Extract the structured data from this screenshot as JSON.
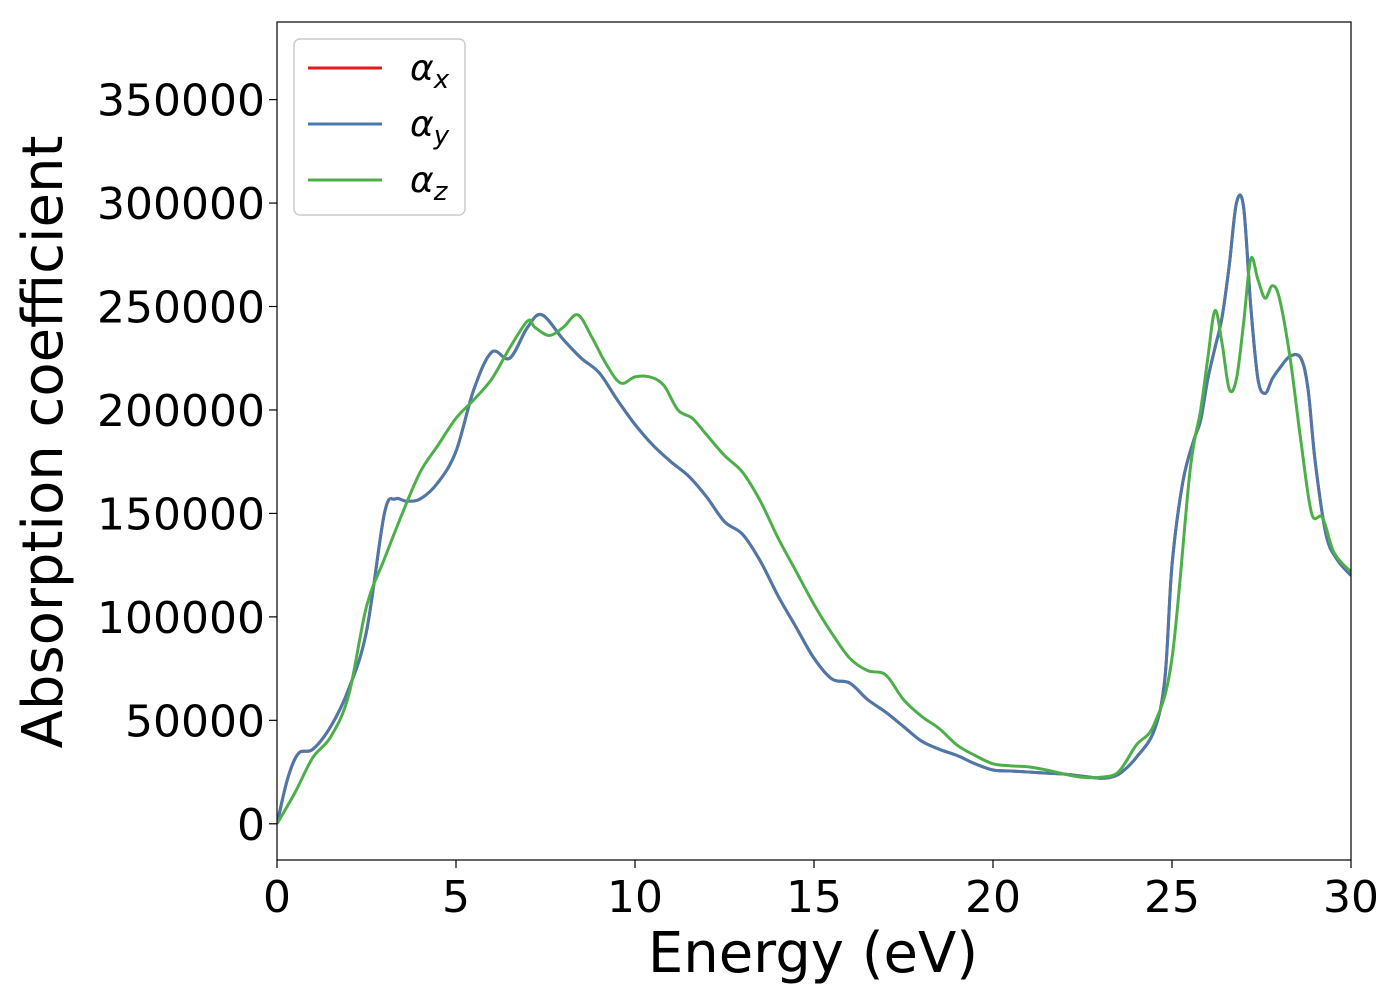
{
  "chart_data": {
    "type": "line",
    "xlabel": "Energy (eV)",
    "ylabel": "Absorption coefficient",
    "xlim": [
      0,
      30
    ],
    "ylim": [
      -17500,
      387500
    ],
    "xticks": [
      0,
      5,
      10,
      15,
      20,
      25,
      30
    ],
    "yticks": [
      0,
      50000,
      100000,
      150000,
      200000,
      250000,
      300000,
      350000
    ],
    "grid": false,
    "legend_position": "top-left",
    "series": [
      {
        "name": "αx",
        "legend_base": "α",
        "legend_sub": "x",
        "color": "#e41a1c",
        "x": [
          0,
          0.3,
          0.6,
          1.0,
          1.5,
          2.0,
          2.5,
          3.0,
          3.3,
          3.6,
          4.0,
          4.5,
          5.0,
          5.5,
          6.0,
          6.5,
          7.0,
          7.4,
          8.0,
          8.5,
          9.0,
          9.5,
          10.0,
          10.5,
          11.0,
          11.5,
          12.0,
          12.5,
          13.0,
          13.5,
          14.0,
          14.5,
          15.0,
          15.5,
          16.0,
          16.5,
          17.0,
          17.5,
          18.0,
          18.5,
          19.0,
          19.5,
          20.0,
          20.5,
          21.0,
          21.5,
          22.0,
          22.5,
          23.0,
          23.3,
          23.6,
          24.0,
          24.5,
          24.8,
          25.0,
          25.3,
          25.6,
          25.8,
          26.0,
          26.2,
          26.4,
          26.6,
          26.8,
          27.0,
          27.2,
          27.4,
          27.6,
          27.8,
          28.0,
          28.3,
          28.6,
          28.8,
          29.0,
          29.3,
          29.6,
          30.0
        ],
        "y": [
          0,
          22000,
          34000,
          36000,
          47000,
          65000,
          93000,
          150000,
          157000,
          156000,
          157000,
          165000,
          180000,
          210000,
          228000,
          225000,
          240000,
          246000,
          234000,
          225000,
          218000,
          205000,
          193000,
          183000,
          175000,
          168000,
          158000,
          146000,
          140000,
          127000,
          110000,
          95000,
          80000,
          70000,
          68000,
          60000,
          54000,
          47000,
          40000,
          36000,
          33000,
          29000,
          26000,
          25500,
          25000,
          24500,
          24000,
          23000,
          22000,
          22500,
          25000,
          32000,
          45000,
          70000,
          125000,
          165000,
          185000,
          195000,
          215000,
          230000,
          245000,
          270000,
          300000,
          298000,
          250000,
          215000,
          208000,
          215000,
          220000,
          226000,
          225000,
          210000,
          175000,
          140000,
          128000,
          120000
        ]
      },
      {
        "name": "αy",
        "legend_base": "α",
        "legend_sub": "y",
        "color": "#4a79aa",
        "x": [
          0,
          0.3,
          0.6,
          1.0,
          1.5,
          2.0,
          2.5,
          3.0,
          3.3,
          3.6,
          4.0,
          4.5,
          5.0,
          5.5,
          6.0,
          6.5,
          7.0,
          7.4,
          8.0,
          8.5,
          9.0,
          9.5,
          10.0,
          10.5,
          11.0,
          11.5,
          12.0,
          12.5,
          13.0,
          13.5,
          14.0,
          14.5,
          15.0,
          15.5,
          16.0,
          16.5,
          17.0,
          17.5,
          18.0,
          18.5,
          19.0,
          19.5,
          20.0,
          20.5,
          21.0,
          21.5,
          22.0,
          22.5,
          23.0,
          23.3,
          23.6,
          24.0,
          24.5,
          24.8,
          25.0,
          25.3,
          25.6,
          25.8,
          26.0,
          26.2,
          26.4,
          26.6,
          26.8,
          27.0,
          27.2,
          27.4,
          27.6,
          27.8,
          28.0,
          28.3,
          28.6,
          28.8,
          29.0,
          29.3,
          29.6,
          30.0
        ],
        "y": [
          0,
          22000,
          34000,
          36000,
          47000,
          65000,
          93000,
          150000,
          157000,
          156000,
          157000,
          165000,
          180000,
          210000,
          228000,
          225000,
          240000,
          246000,
          234000,
          225000,
          218000,
          205000,
          193000,
          183000,
          175000,
          168000,
          158000,
          146000,
          140000,
          127000,
          110000,
          95000,
          80000,
          70000,
          68000,
          60000,
          54000,
          47000,
          40000,
          36000,
          33000,
          29000,
          26000,
          25500,
          25000,
          24500,
          24000,
          23000,
          22000,
          22500,
          25000,
          32000,
          45000,
          70000,
          125000,
          165000,
          185000,
          195000,
          215000,
          230000,
          245000,
          270000,
          300000,
          298000,
          250000,
          215000,
          208000,
          215000,
          220000,
          226000,
          225000,
          210000,
          175000,
          140000,
          128000,
          120000
        ]
      },
      {
        "name": "αz",
        "legend_base": "α",
        "legend_sub": "z",
        "color": "#4daf4a",
        "x": [
          0,
          0.5,
          1.0,
          1.5,
          2.0,
          2.5,
          3.0,
          3.5,
          4.0,
          4.5,
          5.0,
          5.5,
          6.0,
          6.5,
          7.0,
          7.2,
          7.6,
          8.0,
          8.4,
          8.8,
          9.2,
          9.6,
          10.0,
          10.4,
          10.8,
          11.2,
          11.6,
          12.0,
          12.5,
          13.0,
          13.5,
          14.0,
          14.5,
          15.0,
          15.5,
          16.0,
          16.5,
          17.0,
          17.5,
          18.0,
          18.5,
          19.0,
          19.5,
          20.0,
          20.5,
          21.0,
          21.5,
          22.0,
          22.5,
          23.0,
          23.5,
          24.0,
          24.5,
          25.0,
          25.5,
          25.8,
          26.0,
          26.2,
          26.4,
          26.6,
          26.8,
          27.0,
          27.2,
          27.4,
          27.6,
          27.8,
          28.0,
          28.3,
          28.6,
          28.9,
          29.2,
          29.5,
          29.8,
          30.0
        ],
        "y": [
          0,
          15000,
          32000,
          42000,
          62000,
          105000,
          128000,
          150000,
          170000,
          183000,
          196000,
          205000,
          215000,
          230000,
          243000,
          240000,
          236000,
          240000,
          246000,
          235000,
          222000,
          213000,
          216000,
          216000,
          212000,
          200000,
          196000,
          188000,
          178000,
          170000,
          156000,
          138000,
          122000,
          106000,
          92000,
          80000,
          74000,
          72000,
          60000,
          52000,
          46000,
          38000,
          33000,
          29000,
          28000,
          27500,
          26000,
          24000,
          22500,
          22500,
          25000,
          38000,
          48000,
          80000,
          170000,
          200000,
          225000,
          248000,
          232000,
          210000,
          215000,
          242000,
          273000,
          263000,
          254000,
          260000,
          254000,
          225000,
          185000,
          150000,
          148000,
          132000,
          125000,
          122000
        ]
      }
    ]
  }
}
